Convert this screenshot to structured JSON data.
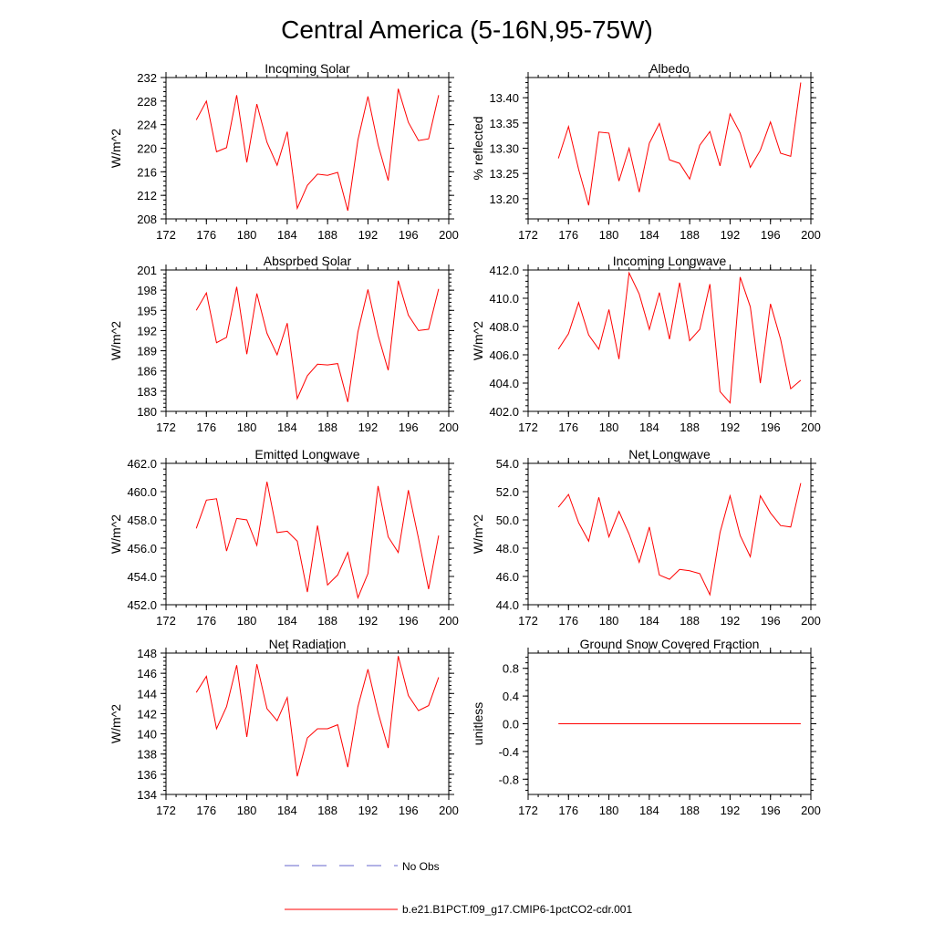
{
  "figure": {
    "title": "Central America (5-16N,95-75W)",
    "line_color": "#ff0000",
    "obs_color": "#6666cc"
  },
  "legend": {
    "obs_label": "No Obs",
    "model_label": "b.e21.B1PCT.f09_g17.CMIP6-1pctCO2-cdr.001"
  },
  "chart_data": [
    {
      "type": "line",
      "title": "Incoming Solar",
      "ylabel": "W/m^2",
      "xlim": [
        172,
        200
      ],
      "xticks": [
        172,
        176,
        180,
        184,
        188,
        192,
        196,
        200
      ],
      "ylim": [
        208,
        232
      ],
      "yticks": [
        "232",
        "228",
        "224",
        "220",
        "216",
        "212",
        "208"
      ],
      "x": [
        175,
        176,
        177,
        178,
        179,
        180,
        181,
        182,
        183,
        184,
        185,
        186,
        187,
        188,
        189,
        190,
        191,
        192,
        193,
        194,
        195,
        196,
        197,
        198,
        199
      ],
      "y": [
        224.8,
        228.0,
        219.4,
        220.1,
        229.0,
        217.6,
        227.5,
        221.0,
        217.1,
        222.8,
        209.8,
        213.7,
        215.6,
        215.4,
        215.9,
        209.4,
        221.4,
        228.8,
        220.6,
        214.5,
        230.1,
        224.4,
        221.3,
        221.6,
        229.0
      ]
    },
    {
      "type": "line",
      "title": "Albedo",
      "ylabel": "% reflected",
      "xlim": [
        172,
        200
      ],
      "xticks": [
        172,
        176,
        180,
        184,
        188,
        192,
        196,
        200
      ],
      "ylim": [
        13.16,
        13.44
      ],
      "yticks": [
        "13.40",
        "13.35",
        "13.30",
        "13.25",
        "13.20"
      ],
      "x": [
        175,
        176,
        177,
        178,
        179,
        180,
        181,
        182,
        183,
        184,
        185,
        186,
        187,
        188,
        189,
        190,
        191,
        192,
        193,
        194,
        195,
        196,
        197,
        198,
        199
      ],
      "y": [
        13.28,
        13.343,
        13.258,
        13.187,
        13.332,
        13.33,
        13.235,
        13.3,
        13.213,
        13.31,
        13.349,
        13.277,
        13.27,
        13.239,
        13.306,
        13.333,
        13.265,
        13.368,
        13.33,
        13.262,
        13.296,
        13.352,
        13.29,
        13.284,
        13.43
      ]
    },
    {
      "type": "line",
      "title": "Absorbed Solar",
      "ylabel": "W/m^2",
      "xlim": [
        172,
        200
      ],
      "xticks": [
        172,
        176,
        180,
        184,
        188,
        192,
        196,
        200
      ],
      "ylim": [
        180,
        201
      ],
      "yticks": [
        "201",
        "198",
        "195",
        "192",
        "189",
        "186",
        "183",
        "180"
      ],
      "x": [
        175,
        176,
        177,
        178,
        179,
        180,
        181,
        182,
        183,
        184,
        185,
        186,
        187,
        188,
        189,
        190,
        191,
        192,
        193,
        194,
        195,
        196,
        197,
        198,
        199
      ],
      "y": [
        195.0,
        197.6,
        190.2,
        191.0,
        198.5,
        188.5,
        197.5,
        191.6,
        188.4,
        193.1,
        181.9,
        185.3,
        187.0,
        186.9,
        187.1,
        181.4,
        191.8,
        198.1,
        191.3,
        186.1,
        199.4,
        194.3,
        192.0,
        192.2,
        198.2
      ]
    },
    {
      "type": "line",
      "title": "Incoming Longwave",
      "ylabel": "W/m^2",
      "xlim": [
        172,
        200
      ],
      "xticks": [
        172,
        176,
        180,
        184,
        188,
        192,
        196,
        200
      ],
      "ylim": [
        402,
        412
      ],
      "yticks": [
        "412.0",
        "410.0",
        "408.0",
        "406.0",
        "404.0",
        "402.0"
      ],
      "x": [
        175,
        176,
        177,
        178,
        179,
        180,
        181,
        182,
        183,
        184,
        185,
        186,
        187,
        188,
        189,
        190,
        191,
        192,
        193,
        194,
        195,
        196,
        197,
        198,
        199
      ],
      "y": [
        406.4,
        407.5,
        409.7,
        407.4,
        406.4,
        409.2,
        405.7,
        411.8,
        410.3,
        407.8,
        410.4,
        407.1,
        411.1,
        407.0,
        407.8,
        411.0,
        403.4,
        402.6,
        411.5,
        409.4,
        404.0,
        409.6,
        407.1,
        403.6,
        404.2
      ]
    },
    {
      "type": "line",
      "title": "Emitted Longwave",
      "ylabel": "W/m^2",
      "xlim": [
        172,
        200
      ],
      "xticks": [
        172,
        176,
        180,
        184,
        188,
        192,
        196,
        200
      ],
      "ylim": [
        452,
        462
      ],
      "yticks": [
        "462.0",
        "460.0",
        "458.0",
        "456.0",
        "454.0",
        "452.0"
      ],
      "x": [
        175,
        176,
        177,
        178,
        179,
        180,
        181,
        182,
        183,
        184,
        185,
        186,
        187,
        188,
        189,
        190,
        191,
        192,
        193,
        194,
        195,
        196,
        197,
        198,
        199
      ],
      "y": [
        457.4,
        459.4,
        459.5,
        455.8,
        458.1,
        458.0,
        456.2,
        460.7,
        457.1,
        457.2,
        456.5,
        452.9,
        457.6,
        453.4,
        454.1,
        455.7,
        452.5,
        454.2,
        460.4,
        456.8,
        455.7,
        460.1,
        456.7,
        453.1,
        456.9
      ]
    },
    {
      "type": "line",
      "title": "Net Longwave",
      "ylabel": "W/m^2",
      "xlim": [
        172,
        200
      ],
      "xticks": [
        172,
        176,
        180,
        184,
        188,
        192,
        196,
        200
      ],
      "ylim": [
        44,
        54
      ],
      "yticks": [
        "54.0",
        "52.0",
        "50.0",
        "48.0",
        "46.0",
        "44.0"
      ],
      "x": [
        175,
        176,
        177,
        178,
        179,
        180,
        181,
        182,
        183,
        184,
        185,
        186,
        187,
        188,
        189,
        190,
        191,
        192,
        193,
        194,
        195,
        196,
        197,
        198,
        199
      ],
      "y": [
        50.9,
        51.8,
        49.8,
        48.5,
        51.6,
        48.8,
        50.6,
        49.0,
        47.0,
        49.5,
        46.1,
        45.8,
        46.5,
        46.4,
        46.2,
        44.7,
        49.1,
        51.7,
        48.9,
        47.4,
        51.7,
        50.5,
        49.6,
        49.5,
        52.6
      ]
    },
    {
      "type": "line",
      "title": "Net Radiation",
      "ylabel": "W/m^2",
      "xlim": [
        172,
        200
      ],
      "xticks": [
        172,
        176,
        180,
        184,
        188,
        192,
        196,
        200
      ],
      "ylim": [
        134,
        148
      ],
      "yticks": [
        "148",
        "146",
        "144",
        "142",
        "140",
        "138",
        "136",
        "134"
      ],
      "x": [
        175,
        176,
        177,
        178,
        179,
        180,
        181,
        182,
        183,
        184,
        185,
        186,
        187,
        188,
        189,
        190,
        191,
        192,
        193,
        194,
        195,
        196,
        197,
        198,
        199
      ],
      "y": [
        144.1,
        145.7,
        140.5,
        142.7,
        146.8,
        139.7,
        146.9,
        142.5,
        141.3,
        143.6,
        135.8,
        139.6,
        140.5,
        140.5,
        140.9,
        136.7,
        142.7,
        146.4,
        142.1,
        138.6,
        147.7,
        143.8,
        142.3,
        142.8,
        145.6
      ]
    },
    {
      "type": "line",
      "title": "Ground Snow Covered Fraction",
      "ylabel": "unitless",
      "xlim": [
        172,
        200
      ],
      "xticks": [
        172,
        176,
        180,
        184,
        188,
        192,
        196,
        200
      ],
      "ylim": [
        -1.02,
        1.02
      ],
      "yticks": [
        "0.8",
        "0.4",
        "0.0",
        "-0.4",
        "-0.8"
      ],
      "x": [
        175,
        176,
        177,
        178,
        179,
        180,
        181,
        182,
        183,
        184,
        185,
        186,
        187,
        188,
        189,
        190,
        191,
        192,
        193,
        194,
        195,
        196,
        197,
        198,
        199
      ],
      "y": [
        0,
        0,
        0,
        0,
        0,
        0,
        0,
        0,
        0,
        0,
        0,
        0,
        0,
        0,
        0,
        0,
        0,
        0,
        0,
        0,
        0,
        0,
        0,
        0,
        0
      ]
    }
  ]
}
